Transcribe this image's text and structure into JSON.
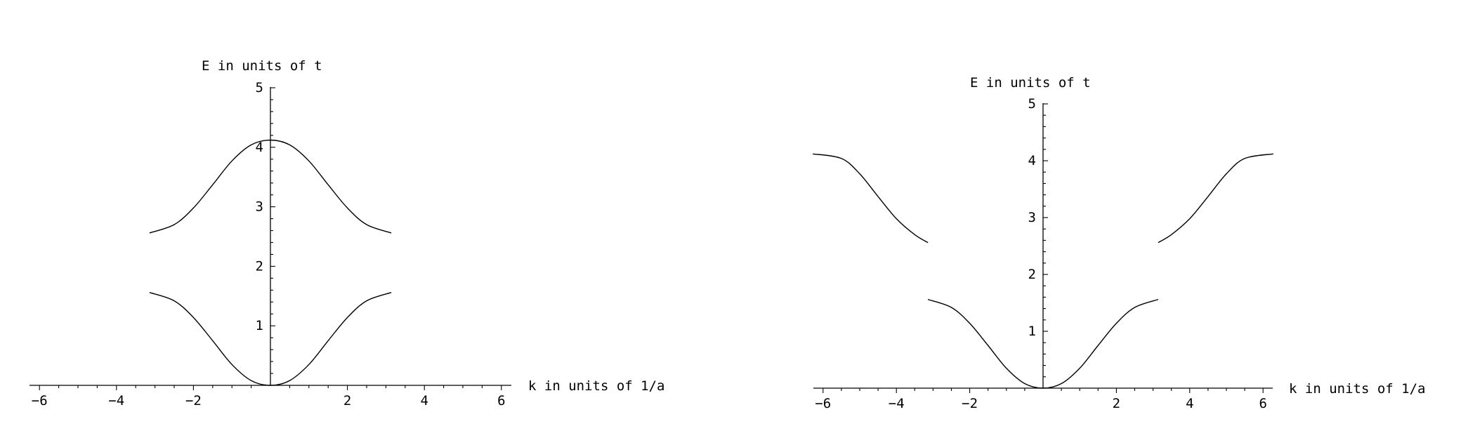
{
  "chart_data": [
    {
      "type": "line",
      "title": "",
      "xlabel": "k in units of 1/a",
      "ylabel": "E in units of t",
      "xlim": [
        -6.2,
        6.2
      ],
      "ylim": [
        0,
        5
      ],
      "x_ticks": [
        -6,
        -4,
        -2,
        2,
        4,
        6
      ],
      "y_ticks": [
        1,
        2,
        3,
        4,
        5
      ],
      "grid": false,
      "series": [
        {
          "x": [
            -3.14,
            -2.5,
            -2.0,
            -1.5,
            -1.0,
            -0.5,
            0,
            0.5,
            1.0,
            1.5,
            2.0,
            2.5,
            3.14
          ],
          "values": [
            2.56,
            2.7,
            2.98,
            3.37,
            3.77,
            4.04,
            4.12,
            4.04,
            3.77,
            3.37,
            2.98,
            2.7,
            2.56
          ]
        },
        {
          "x": [
            -3.14,
            -2.5,
            -2.0,
            -1.5,
            -1.0,
            -0.5,
            0,
            0.5,
            1.0,
            1.5,
            2.0,
            2.5,
            3.14
          ],
          "values": [
            1.56,
            1.42,
            1.14,
            0.75,
            0.35,
            0.08,
            0.0,
            0.08,
            0.35,
            0.75,
            1.14,
            1.42,
            1.56
          ]
        }
      ]
    },
    {
      "type": "line",
      "title": "",
      "xlabel": "k in units of 1/a",
      "ylabel": "E in units of t",
      "xlim": [
        -6.2,
        6.2
      ],
      "ylim": [
        0,
        5
      ],
      "x_ticks": [
        -6,
        -4,
        -2,
        2,
        4,
        6
      ],
      "y_ticks": [
        1,
        2,
        3,
        4,
        5
      ],
      "grid": false,
      "series": [
        {
          "x": [
            -6.28,
            -5.5,
            -5.0,
            -4.5,
            -4.0,
            -3.5,
            -3.14
          ],
          "values": [
            4.12,
            4.04,
            3.77,
            3.37,
            2.98,
            2.7,
            2.56
          ]
        },
        {
          "x": [
            -3.14,
            -2.5,
            -2.0,
            -1.5,
            -1.0,
            -0.5,
            0,
            0.5,
            1.0,
            1.5,
            2.0,
            2.5,
            3.14
          ],
          "values": [
            1.56,
            1.42,
            1.14,
            0.75,
            0.35,
            0.08,
            0.0,
            0.08,
            0.35,
            0.75,
            1.14,
            1.42,
            1.56
          ]
        },
        {
          "x": [
            3.14,
            3.5,
            4.0,
            4.5,
            5.0,
            5.5,
            6.28
          ],
          "values": [
            2.56,
            2.7,
            2.98,
            3.37,
            3.77,
            4.04,
            4.12
          ]
        }
      ]
    }
  ]
}
